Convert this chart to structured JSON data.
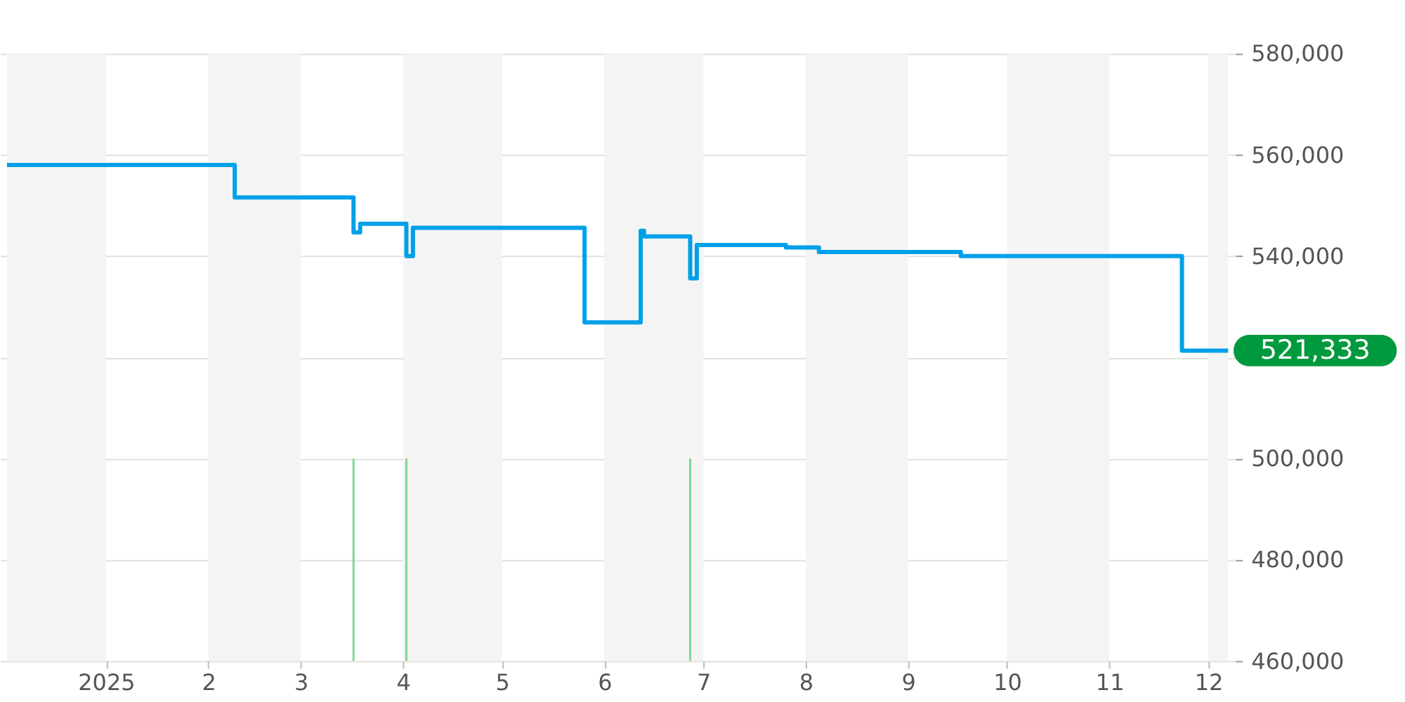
{
  "chart_data": {
    "type": "step",
    "xlim": [
      "2024-12-02",
      "2025-12-07"
    ],
    "xticks": [
      {
        "value": "2025-01-01",
        "label": "2025"
      },
      {
        "value": "2025-02-01",
        "label": "2"
      },
      {
        "value": "2025-03-01",
        "label": "3"
      },
      {
        "value": "2025-04-01",
        "label": "4"
      },
      {
        "value": "2025-05-01",
        "label": "5"
      },
      {
        "value": "2025-06-01",
        "label": "6"
      },
      {
        "value": "2025-07-01",
        "label": "7"
      },
      {
        "value": "2025-08-01",
        "label": "8"
      },
      {
        "value": "2025-09-01",
        "label": "9"
      },
      {
        "value": "2025-10-01",
        "label": "10"
      },
      {
        "value": "2025-11-01",
        "label": "11"
      },
      {
        "value": "2025-12-01",
        "label": "12"
      }
    ],
    "ylim": [
      460000,
      580000
    ],
    "yticks": [
      {
        "value": 460000,
        "label": "460,000"
      },
      {
        "value": 480000,
        "label": "480,000"
      },
      {
        "value": 500000,
        "label": "500,000"
      },
      {
        "value": 520000,
        "label": null
      },
      {
        "value": 540000,
        "label": "540,000"
      },
      {
        "value": 560000,
        "label": "560,000"
      },
      {
        "value": 580000,
        "label": "580,000"
      }
    ],
    "grid": "y",
    "series": [
      {
        "color": "#00a0e9",
        "x": [
          "2024-12-02",
          "2025-02-09",
          "2025-03-17",
          "2025-03-19",
          "2025-04-02",
          "2025-04-04",
          "2025-05-26",
          "2025-06-12",
          "2025-06-13",
          "2025-06-27",
          "2025-06-29",
          "2025-07-26",
          "2025-08-05",
          "2025-09-17",
          "2025-11-23",
          "2025-12-07"
        ],
        "values": [
          558000,
          551600,
          544700,
          546400,
          540000,
          545600,
          526900,
          545000,
          543900,
          535600,
          542200,
          541700,
          540800,
          540000,
          521333,
          521333
        ]
      },
      {
        "type": "bar",
        "color": "#7dd88f",
        "x": [
          "2025-03-17",
          "2025-04-02",
          "2025-06-27"
        ],
        "base": [
          460000,
          460000,
          460000
        ],
        "values": [
          40000,
          40000,
          40000
        ]
      }
    ],
    "bands": [
      {
        "axis": "x",
        "from": "2024-12-02",
        "to": "2025-01-01",
        "color": "#f4f4f4"
      },
      {
        "axis": "x",
        "from": "2025-02-01",
        "to": "2025-03-01",
        "color": "#f4f4f4"
      },
      {
        "axis": "x",
        "from": "2025-04-01",
        "to": "2025-05-01",
        "color": "#f4f4f4"
      },
      {
        "axis": "x",
        "from": "2025-06-01",
        "to": "2025-07-01",
        "color": "#f4f4f4"
      },
      {
        "axis": "x",
        "from": "2025-08-01",
        "to": "2025-09-01",
        "color": "#f4f4f4"
      },
      {
        "axis": "x",
        "from": "2025-10-01",
        "to": "2025-11-01",
        "color": "#f4f4f4"
      },
      {
        "axis": "x",
        "from": "2025-12-01",
        "to": "2025-12-07",
        "color": "#f4f4f4"
      }
    ],
    "annotations": [
      {
        "text": "521,333",
        "x": "2025-12-07",
        "y": 521333
      }
    ]
  }
}
